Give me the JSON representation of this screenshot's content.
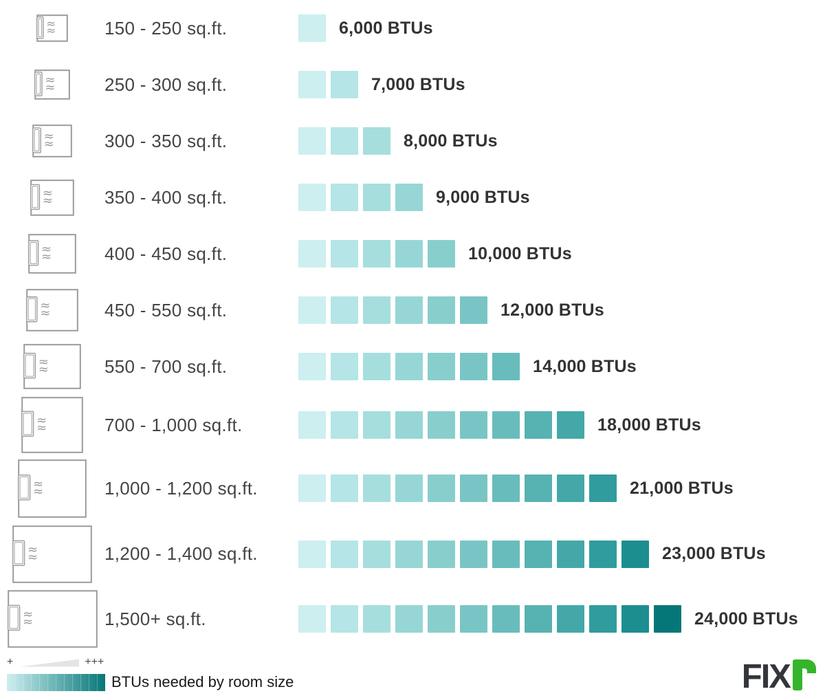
{
  "chart_data": {
    "type": "bar",
    "title": "BTUs needed by room size",
    "categories": [
      "150 - 250 sq.ft.",
      "250 - 300 sq.ft.",
      "300 - 350 sq.ft.",
      "350 - 400 sq.ft.",
      "400 - 450 sq.ft.",
      "450 - 550 sq.ft.",
      "550 - 700 sq.ft.",
      "700 - 1,000 sq.ft.",
      "1,000 - 1,200 sq.ft.",
      "1,200 - 1,400 sq.ft.",
      "1,500+ sq.ft."
    ],
    "values": [
      6000,
      7000,
      8000,
      9000,
      10000,
      12000,
      14000,
      18000,
      21000,
      23000,
      24000
    ],
    "value_labels": [
      "6,000 BTUs",
      "7,000 BTUs",
      "8,000 BTUs",
      "9,000 BTUs",
      "10,000 BTUs",
      "12,000 BTUs",
      "14,000 BTUs",
      "18,000 BTUs",
      "21,000 BTUs",
      "23,000 BTUs",
      "24,000 BTUs"
    ],
    "square_counts": [
      1,
      2,
      3,
      4,
      5,
      6,
      7,
      9,
      10,
      11,
      12
    ],
    "palette": [
      "#cdeff0",
      "#b5e5e6",
      "#a6dede",
      "#97d6d6",
      "#88cecd",
      "#79c5c5",
      "#69bcbc",
      "#57b2b2",
      "#44a8a8",
      "#309c9d",
      "#1c8e8f",
      "#067778"
    ],
    "xlabel": "",
    "ylabel": "",
    "legend_position": "bottom-left",
    "grid": false
  },
  "rows": [
    {
      "label": "150 - 250 sq.ft.",
      "btu": "6,000 BTUs",
      "squares": 1
    },
    {
      "label": "250 - 300 sq.ft.",
      "btu": "7,000 BTUs",
      "squares": 2
    },
    {
      "label": "300 - 350 sq.ft.",
      "btu": "8,000 BTUs",
      "squares": 3
    },
    {
      "label": "350 - 400 sq.ft.",
      "btu": "9,000 BTUs",
      "squares": 4
    },
    {
      "label": "400 - 450 sq.ft.",
      "btu": "10,000 BTUs",
      "squares": 5
    },
    {
      "label": "450 - 550 sq.ft.",
      "btu": "12,000 BTUs",
      "squares": 6
    },
    {
      "label": "550 - 700 sq.ft.",
      "btu": "14,000 BTUs",
      "squares": 7
    },
    {
      "label": "700 - 1,000 sq.ft.",
      "btu": "18,000 BTUs",
      "squares": 9
    },
    {
      "label": "1,000 - 1,200 sq.ft.",
      "btu": "21,000 BTUs",
      "squares": 10
    },
    {
      "label": "1,200 - 1,400 sq.ft.",
      "btu": "23,000 BTUs",
      "squares": 11
    },
    {
      "label": "1,500+ sq.ft.",
      "btu": "24,000 BTUs",
      "squares": 12
    }
  ],
  "legend": {
    "min_symbol": "+",
    "max_symbol": "+++",
    "label": "BTUs needed by room size"
  },
  "logo": {
    "dark_text": "FIX",
    "green_letter": "r"
  },
  "colors": {
    "icon_stroke": "#9b9b9b",
    "label_text": "#454545",
    "btu_text": "#333333",
    "legend_text": "#1a1a1a",
    "logo_dark": "#33363a",
    "logo_green": "#35b52b",
    "wedge_gray": "#e4e4e4"
  }
}
